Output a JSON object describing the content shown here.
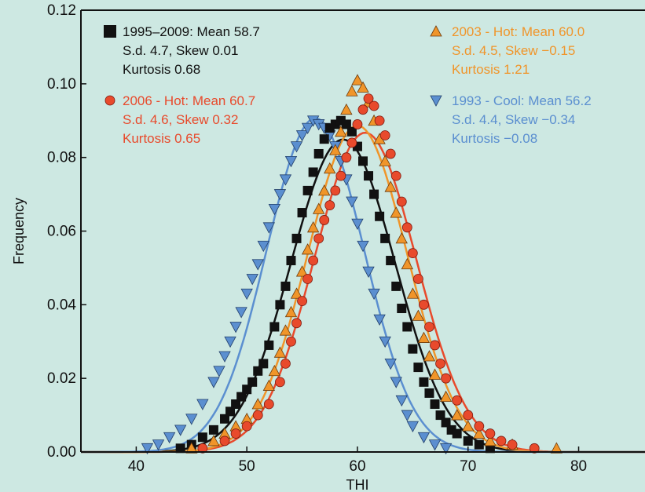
{
  "chart_data": {
    "type": "scatter",
    "title": "",
    "xlabel": "THI",
    "ylabel": "Frequency",
    "xlim": [
      35,
      86
    ],
    "ylim": [
      0,
      0.12
    ],
    "xticks": [
      "40",
      "50",
      "60",
      "70",
      "80"
    ],
    "yticks": [
      "0.00",
      "0.02",
      "0.04",
      "0.06",
      "0.08",
      "0.10",
      "0.12"
    ],
    "grid": false,
    "legend": "in-plot-top",
    "series": [
      {
        "name": "1995–2009",
        "marker": "square",
        "color": "#111111",
        "line_color": "#111111",
        "stats": [
          "1995–2009: Mean 58.7",
          "S.d. 4.7, Skew 0.01",
          "Kurtosis 0.68"
        ],
        "fit": {
          "mean": 58.7,
          "sd": 4.7
        },
        "points": [
          [
            44,
            0.001
          ],
          [
            45,
            0.002
          ],
          [
            46,
            0.004
          ],
          [
            47,
            0.006
          ],
          [
            48,
            0.009
          ],
          [
            48.5,
            0.011
          ],
          [
            49,
            0.013
          ],
          [
            49.5,
            0.015
          ],
          [
            50,
            0.017
          ],
          [
            50.5,
            0.019
          ],
          [
            51,
            0.022
          ],
          [
            51.5,
            0.024
          ],
          [
            52,
            0.029
          ],
          [
            52.5,
            0.034
          ],
          [
            53,
            0.04
          ],
          [
            53.5,
            0.045
          ],
          [
            54,
            0.052
          ],
          [
            54.5,
            0.058
          ],
          [
            55,
            0.065
          ],
          [
            55.5,
            0.071
          ],
          [
            56,
            0.076
          ],
          [
            56.5,
            0.081
          ],
          [
            57,
            0.085
          ],
          [
            57.5,
            0.088
          ],
          [
            58,
            0.089
          ],
          [
            58.5,
            0.09
          ],
          [
            59,
            0.089
          ],
          [
            59.5,
            0.087
          ],
          [
            60,
            0.083
          ],
          [
            60.5,
            0.079
          ],
          [
            61,
            0.075
          ],
          [
            61.5,
            0.07
          ],
          [
            62,
            0.064
          ],
          [
            62.5,
            0.058
          ],
          [
            63,
            0.052
          ],
          [
            63.5,
            0.045
          ],
          [
            64,
            0.039
          ],
          [
            64.5,
            0.034
          ],
          [
            65,
            0.028
          ],
          [
            65.5,
            0.023
          ],
          [
            66,
            0.019
          ],
          [
            66.5,
            0.016
          ],
          [
            67,
            0.013
          ],
          [
            67.5,
            0.01
          ],
          [
            68,
            0.008
          ],
          [
            68.5,
            0.006
          ],
          [
            69,
            0.005
          ],
          [
            70,
            0.003
          ],
          [
            71,
            0.002
          ],
          [
            72,
            0.001
          ]
        ]
      },
      {
        "name": "2006 - Hot",
        "marker": "circle",
        "color": "#e84a2c",
        "line_color": "#e84a2c",
        "stats": [
          "2006 - Hot: Mean 60.7",
          "S.d. 4.6, Skew 0.32",
          "Kurtosis 0.65"
        ],
        "fit": {
          "mean": 60.7,
          "sd": 4.6
        },
        "points": [
          [
            46,
            0.001
          ],
          [
            48,
            0.003
          ],
          [
            49,
            0.005
          ],
          [
            50,
            0.007
          ],
          [
            51,
            0.01
          ],
          [
            52,
            0.013
          ],
          [
            53,
            0.019
          ],
          [
            53.5,
            0.024
          ],
          [
            54,
            0.03
          ],
          [
            54.5,
            0.035
          ],
          [
            55,
            0.041
          ],
          [
            55.5,
            0.047
          ],
          [
            56,
            0.052
          ],
          [
            56.5,
            0.058
          ],
          [
            57,
            0.063
          ],
          [
            57.5,
            0.067
          ],
          [
            58,
            0.071
          ],
          [
            58.5,
            0.075
          ],
          [
            59,
            0.08
          ],
          [
            59.5,
            0.084
          ],
          [
            60,
            0.089
          ],
          [
            60.5,
            0.093
          ],
          [
            61,
            0.096
          ],
          [
            61.5,
            0.094
          ],
          [
            62,
            0.09
          ],
          [
            62.5,
            0.086
          ],
          [
            63,
            0.081
          ],
          [
            63.5,
            0.075
          ],
          [
            64,
            0.068
          ],
          [
            64.5,
            0.061
          ],
          [
            65,
            0.054
          ],
          [
            65.5,
            0.047
          ],
          [
            66,
            0.04
          ],
          [
            66.5,
            0.034
          ],
          [
            67,
            0.029
          ],
          [
            67.5,
            0.024
          ],
          [
            68,
            0.02
          ],
          [
            69,
            0.014
          ],
          [
            70,
            0.01
          ],
          [
            71,
            0.007
          ],
          [
            72,
            0.005
          ],
          [
            73,
            0.003
          ],
          [
            74,
            0.002
          ],
          [
            76,
            0.001
          ]
        ]
      },
      {
        "name": "2003 - Hot",
        "marker": "triangle-up",
        "color": "#f0952a",
        "line_color": "#f0952a",
        "stats": [
          "2003 - Hot: Mean 60.0",
          "S.d. 4.5, Skew −0.15",
          "Kurtosis 1.21"
        ],
        "fit": {
          "mean": 60.0,
          "sd": 4.5
        },
        "points": [
          [
            45,
            0.001
          ],
          [
            47,
            0.003
          ],
          [
            48,
            0.005
          ],
          [
            49,
            0.007
          ],
          [
            50,
            0.009
          ],
          [
            51,
            0.013
          ],
          [
            52,
            0.018
          ],
          [
            52.5,
            0.022
          ],
          [
            53,
            0.027
          ],
          [
            53.5,
            0.033
          ],
          [
            54,
            0.038
          ],
          [
            54.5,
            0.043
          ],
          [
            55,
            0.049
          ],
          [
            55.5,
            0.055
          ],
          [
            56,
            0.061
          ],
          [
            56.5,
            0.066
          ],
          [
            57,
            0.071
          ],
          [
            57.5,
            0.077
          ],
          [
            58,
            0.082
          ],
          [
            58.5,
            0.087
          ],
          [
            59,
            0.093
          ],
          [
            59.5,
            0.098
          ],
          [
            60,
            0.101
          ],
          [
            60.5,
            0.099
          ],
          [
            61,
            0.095
          ],
          [
            61.5,
            0.09
          ],
          [
            62,
            0.085
          ],
          [
            62.5,
            0.079
          ],
          [
            63,
            0.072
          ],
          [
            63.5,
            0.065
          ],
          [
            64,
            0.058
          ],
          [
            64.5,
            0.051
          ],
          [
            65,
            0.043
          ],
          [
            65.5,
            0.037
          ],
          [
            66,
            0.031
          ],
          [
            66.5,
            0.026
          ],
          [
            67,
            0.021
          ],
          [
            68,
            0.015
          ],
          [
            69,
            0.01
          ],
          [
            70,
            0.007
          ],
          [
            71,
            0.005
          ],
          [
            72,
            0.003
          ],
          [
            74,
            0.002
          ],
          [
            78,
            0.001
          ]
        ]
      },
      {
        "name": "1993 - Cool",
        "marker": "triangle-down",
        "color": "#5b8fd0",
        "line_color": "#5b8fd0",
        "stats": [
          "1993 - Cool: Mean 56.2",
          "S.d. 4.4, Skew −0.34",
          "Kurtosis −0.08"
        ],
        "fit": {
          "mean": 56.2,
          "sd": 4.4
        },
        "points": [
          [
            41,
            0.001
          ],
          [
            42,
            0.002
          ],
          [
            43,
            0.004
          ],
          [
            44,
            0.006
          ],
          [
            45,
            0.009
          ],
          [
            46,
            0.013
          ],
          [
            47,
            0.019
          ],
          [
            47.5,
            0.022
          ],
          [
            48,
            0.026
          ],
          [
            48.5,
            0.03
          ],
          [
            49,
            0.034
          ],
          [
            49.5,
            0.038
          ],
          [
            50,
            0.043
          ],
          [
            50.5,
            0.047
          ],
          [
            51,
            0.051
          ],
          [
            51.5,
            0.056
          ],
          [
            52,
            0.061
          ],
          [
            52.5,
            0.066
          ],
          [
            53,
            0.07
          ],
          [
            53.5,
            0.074
          ],
          [
            54,
            0.079
          ],
          [
            54.5,
            0.083
          ],
          [
            55,
            0.086
          ],
          [
            55.5,
            0.088
          ],
          [
            56,
            0.09
          ],
          [
            56.5,
            0.089
          ],
          [
            57,
            0.088
          ],
          [
            57.5,
            0.086
          ],
          [
            58,
            0.083
          ],
          [
            58.5,
            0.079
          ],
          [
            59,
            0.074
          ],
          [
            59.5,
            0.068
          ],
          [
            60,
            0.062
          ],
          [
            60.5,
            0.056
          ],
          [
            61,
            0.049
          ],
          [
            61.5,
            0.043
          ],
          [
            62,
            0.036
          ],
          [
            62.5,
            0.03
          ],
          [
            63,
            0.024
          ],
          [
            63.5,
            0.019
          ],
          [
            64,
            0.014
          ],
          [
            64.5,
            0.01
          ],
          [
            65,
            0.007
          ],
          [
            66,
            0.004
          ],
          [
            67,
            0.002
          ],
          [
            68,
            0.001
          ]
        ]
      }
    ]
  }
}
